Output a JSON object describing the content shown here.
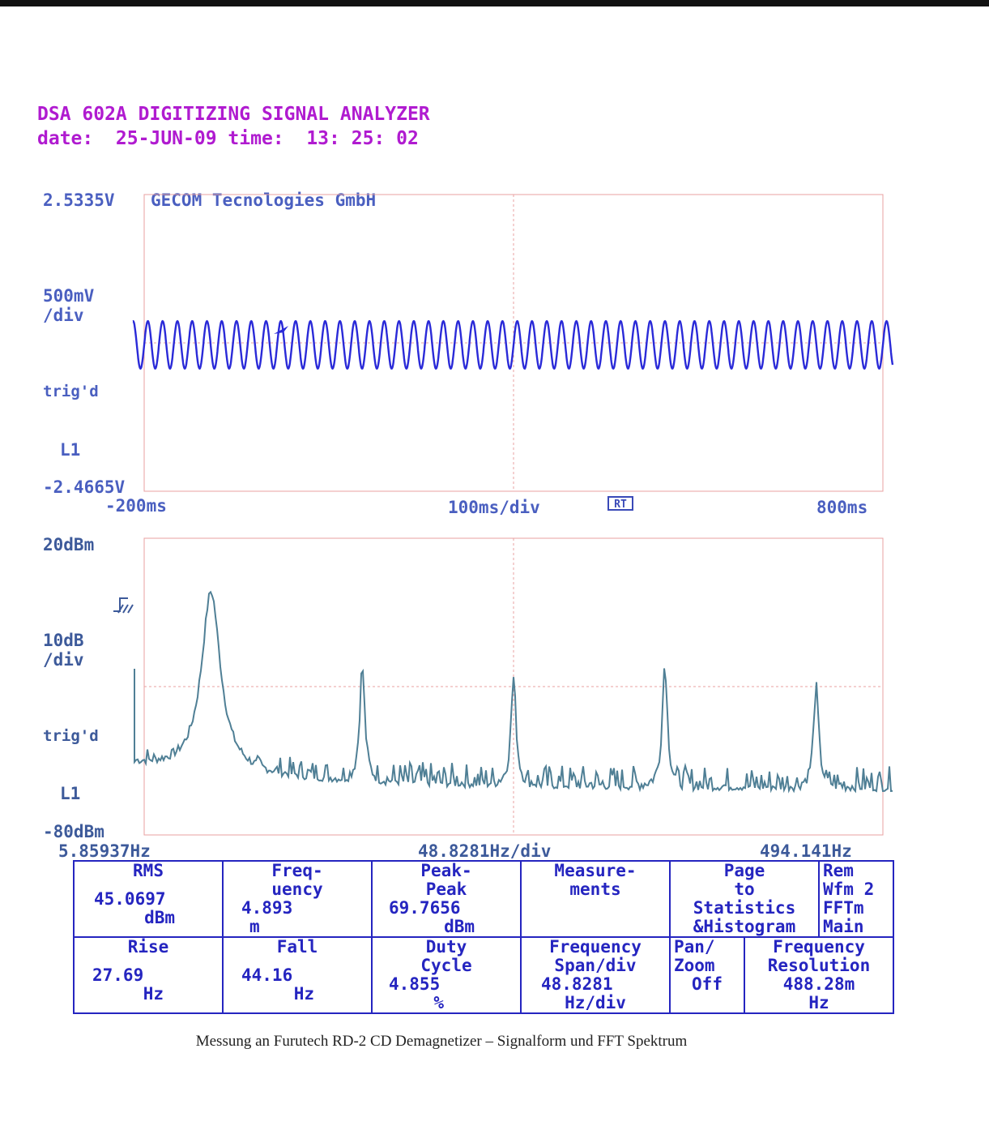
{
  "header": {
    "title": "DSA 602A DIGITIZING SIGNAL ANALYZER",
    "date_line": "date:  25-JUN-09 time:  13: 25: 02"
  },
  "colors": {
    "header": "#b01bd0",
    "time_trace": "#2a2ad8",
    "fft_trace": "#4f7f95",
    "grid": "#e8a0a0",
    "table": "#2525c0"
  },
  "time_panel": {
    "top_label": "2.5335V",
    "company": "GECOM Tecnologies GmbH",
    "scale": "500mV\n/div",
    "trig": "trig'd",
    "channel": "L1",
    "bottom_label": "-2.4665V",
    "x_start": "-200ms",
    "x_div": "100ms/div",
    "x_end": "800ms",
    "rt_badge": "RT"
  },
  "fft_panel": {
    "top_label": "20dBm",
    "scale": "10dB\n/div",
    "trig": "trig'd",
    "channel": "L1",
    "bottom_label": "-80dBm",
    "x_start": "5.85937Hz",
    "x_div": "48.8281Hz/div",
    "x_end": "494.141Hz",
    "trig_icon": "trigger-symbol-icon"
  },
  "chart_data": [
    {
      "type": "line",
      "title": "",
      "x_unit": "ms",
      "xlim": [
        -200,
        800
      ],
      "ylim": [
        -2.4665,
        2.5335
      ],
      "series": [
        {
          "name": "",
          "frequency_hz": 50,
          "amplitude_v": 0.4,
          "offset_v": 0.0
        }
      ]
    },
    {
      "type": "line",
      "title": "",
      "x_unit": "Hz",
      "xlim": [
        5.85937,
        494.141
      ],
      "ylim": [
        -80,
        20
      ],
      "peaks": [
        {
          "x": 50,
          "y": 2
        },
        {
          "x": 150,
          "y": -23
        },
        {
          "x": 250,
          "y": -27
        },
        {
          "x": 350,
          "y": -22
        },
        {
          "x": 450,
          "y": -30
        }
      ],
      "noise_floor_db": -62
    }
  ],
  "measurements": {
    "rms": {
      "label": "RMS",
      "value": "45.0697",
      "unit": "dBm"
    },
    "frequency": {
      "label": "Freq-\nuency",
      "value": "4.893",
      "unit": "m"
    },
    "peak_peak": {
      "label": "Peak-\nPeak",
      "value": "69.7656",
      "unit": "dBm"
    },
    "measurements_btn": "Measure-\nments",
    "page_stats": "Page\nto\nStatistics\n&Histogram",
    "rem": "Rem\nWfm 2\nFFTm\nMain",
    "rise": {
      "label": "Rise",
      "value": "27.69",
      "unit": "Hz"
    },
    "fall": {
      "label": "Fall",
      "value": "44.16",
      "unit": "Hz"
    },
    "duty": {
      "label": "Duty\nCycle",
      "value": "4.855",
      "unit": "%"
    },
    "span": {
      "label": "Frequency\nSpan/div",
      "value": "48.8281",
      "unit": "Hz/div"
    },
    "pan_zoom": {
      "label": "Pan/\nZoom",
      "value": "Off"
    },
    "resolution": {
      "label": "Frequency\nResolution",
      "value": "488.28m",
      "unit": "Hz"
    }
  },
  "caption": "Messung an Furutech RD-2 CD Demagnetizer – Signalform und FFT Spektrum"
}
